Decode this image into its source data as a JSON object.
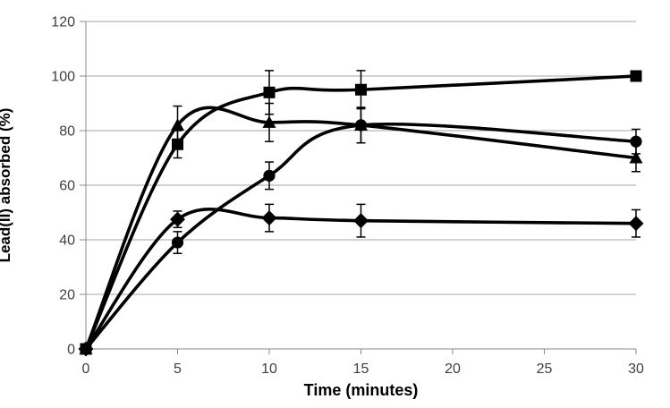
{
  "chart_data": {
    "type": "line",
    "subtype": "smooth-lines-with-markers-and-error-bars",
    "title": "",
    "xlabel": "Time (minutes)",
    "ylabel": "Lead(II) absorbed (%)",
    "x": [
      0,
      5,
      10,
      15,
      30
    ],
    "xlim": [
      0,
      30
    ],
    "ylim": [
      0,
      120
    ],
    "x_ticks": [
      0,
      5,
      10,
      15,
      20,
      25,
      30
    ],
    "y_ticks": [
      0,
      20,
      40,
      60,
      80,
      100,
      120
    ],
    "grid": "horizontal",
    "legend_position": "none",
    "series": [
      {
        "name": "squares",
        "marker": "square",
        "color": "#000000",
        "values": [
          0,
          75,
          94,
          95,
          100
        ],
        "error": [
          0,
          5,
          8,
          7,
          0
        ]
      },
      {
        "name": "triangles",
        "marker": "triangle",
        "color": "#000000",
        "values": [
          0,
          82,
          83,
          82,
          70
        ],
        "error": [
          0,
          7,
          7,
          6.5,
          5
        ]
      },
      {
        "name": "circles",
        "marker": "circle",
        "color": "#000000",
        "values": [
          0,
          39,
          63.5,
          82,
          76
        ],
        "error": [
          0,
          4,
          5,
          6.5,
          4.5
        ]
      },
      {
        "name": "diamonds",
        "marker": "diamond",
        "color": "#000000",
        "values": [
          0,
          47.5,
          48,
          47,
          46
        ],
        "error": [
          0,
          3,
          5,
          6,
          5
        ]
      }
    ]
  },
  "styles": {
    "background": "#FFFFFF",
    "grid_color": "#A6A6A6",
    "axis_color": "#898989",
    "tick_label_color": "#3F3F3F",
    "series_color": "#000000"
  }
}
